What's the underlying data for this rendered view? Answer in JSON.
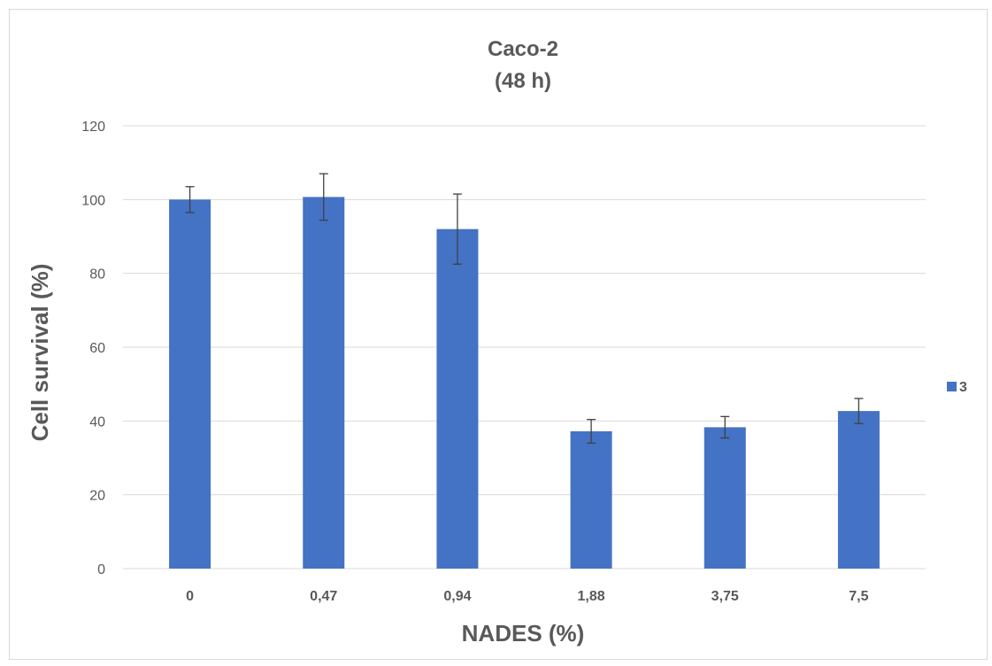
{
  "chart_data": {
    "type": "bar",
    "title_lines": [
      "Caco-2",
      "(48 h)"
    ],
    "xlabel": "NADES (%)",
    "ylabel": "Cell survival (%)",
    "categories": [
      "0",
      "0,47",
      "0,94",
      "1,88",
      "3,75",
      "7,5"
    ],
    "series": [
      {
        "name": "3",
        "color": "#4472c4",
        "values": [
          100,
          100.7,
          92,
          37.2,
          38.3,
          42.7
        ],
        "errors": [
          3.5,
          6.3,
          9.5,
          3.2,
          2.9,
          3.4
        ]
      }
    ],
    "ylim": [
      0,
      120
    ],
    "yticks": [
      0,
      20,
      40,
      60,
      80,
      100,
      120
    ],
    "grid": true,
    "legend_position": "right",
    "error_bar_color": "#404040"
  }
}
